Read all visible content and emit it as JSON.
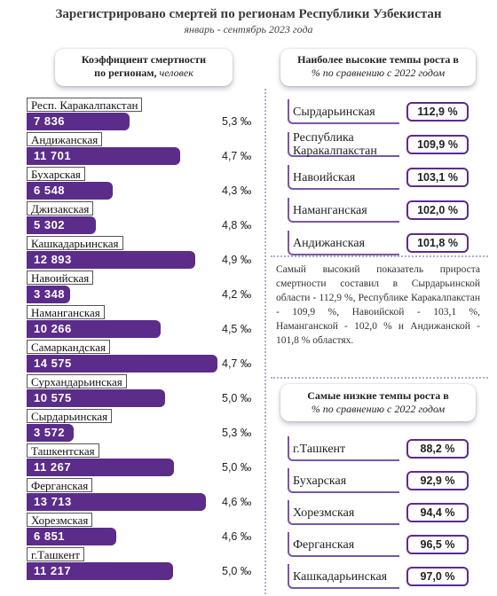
{
  "title": "Зарегистрировано смертей по регионам Республики Узбекистан",
  "subtitle": "январь - сентябрь 2023 года",
  "left_panel": {
    "header_line1": "Коэффициент смертности",
    "header_line2": "по регионам,",
    "header_unit": "человек"
  },
  "top_panel": {
    "header_line1": "Наиболее высокие темпы роста в",
    "header_line2": "% по сравнению с 2022 годом",
    "items": [
      {
        "name": "Сырдарьинская",
        "value": "112,9 %"
      },
      {
        "name": "Республика Каракалпакстан",
        "value": "109,9 %"
      },
      {
        "name": "Навоийская",
        "value": "103,1 %"
      },
      {
        "name": "Наманганская",
        "value": "102,0 %"
      },
      {
        "name": "Андижанская",
        "value": "101,8 %"
      }
    ]
  },
  "note": "Самый высокий показатель прироста смертности составил в Сырдарьинской области - 112,9 %, Республике Каракалпакстан - 109,9 %, Навоийской - 103,1 %, Наманганской - 102,0 % и Андижанской - 101,8 % областях.",
  "low_panel": {
    "header_line1": "Самые низкие темпы роста в",
    "header_line2": "% по сравнению с 2022 годом",
    "items": [
      {
        "name": "г.Ташкент",
        "value": "88,2 %"
      },
      {
        "name": "Бухарская",
        "value": "92,9 %"
      },
      {
        "name": "Хорезмская",
        "value": "94,4 %"
      },
      {
        "name": "Ферганская",
        "value": "96,5 %"
      },
      {
        "name": "Кашкадарьинская",
        "value": "97,0 %"
      }
    ]
  },
  "colors": {
    "bar": "#5b2c8a",
    "accent": "#7b56a6",
    "divider": "#b9a7cf"
  },
  "chart_data": {
    "type": "bar",
    "orientation": "horizontal",
    "categories": [
      "Респ. Каракалпакстан",
      "Андижанская",
      "Бухарская",
      "Джизакская",
      "Кашкадарьинская",
      "Навоийская",
      "Наманганская",
      "Самаркандская",
      "Сурхандарьинская",
      "Сырдарьинская",
      "Ташкентская",
      "Ферганская",
      "Хорезмская",
      "г.Ташкент"
    ],
    "values": [
      7836,
      11701,
      6548,
      5302,
      12893,
      3348,
      10266,
      14575,
      10575,
      3572,
      11267,
      13713,
      6851,
      11217
    ],
    "value_labels": [
      "7 836",
      "11 701",
      "6 548",
      "5 302",
      "12 893",
      "3 348",
      "10 266",
      "14 575",
      "10 575",
      "3 572",
      "11 267",
      "13 713",
      "6 851",
      "11 217"
    ],
    "rates": [
      "5,3 ‰",
      "4,7 ‰",
      "4,3 ‰",
      "4,8 ‰",
      "4,9 ‰",
      "4,2 ‰",
      "4,5 ‰",
      "4,7 ‰",
      "5,0 ‰",
      "5,3 ‰",
      "5,0 ‰",
      "4,6 ‰",
      "4,6 ‰",
      "5,0 ‰"
    ],
    "xlim": [
      0,
      14575
    ]
  }
}
